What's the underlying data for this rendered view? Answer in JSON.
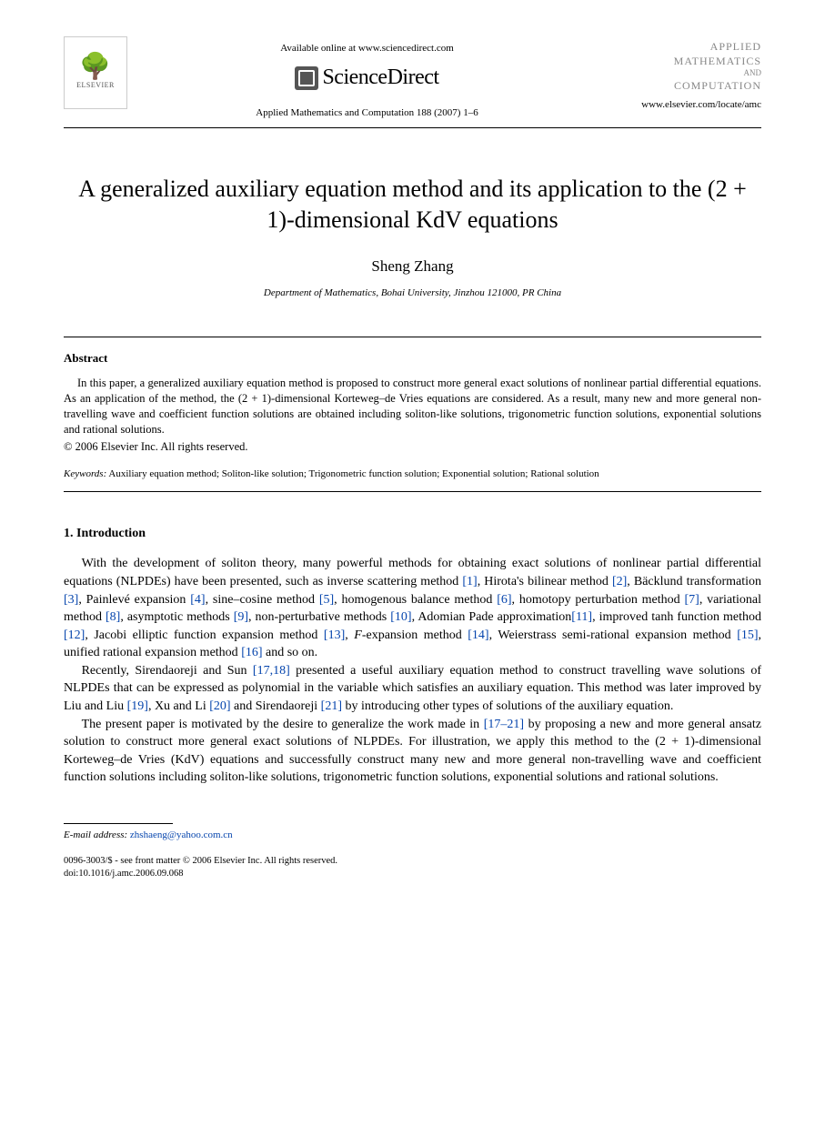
{
  "header": {
    "publisher_name": "ELSEVIER",
    "available_online": "Available online at www.sciencedirect.com",
    "sciencedirect": "ScienceDirect",
    "journal_reference": "Applied Mathematics and Computation 188 (2007) 1–6",
    "journal_logo_line1": "APPLIED",
    "journal_logo_line2": "MATHEMATICS",
    "journal_logo_and": "AND",
    "journal_logo_line3": "COMPUTATION",
    "journal_url": "www.elsevier.com/locate/amc"
  },
  "title": "A generalized auxiliary equation method and its application to the (2 + 1)-dimensional KdV equations",
  "author": "Sheng Zhang",
  "affiliation": "Department of Mathematics, Bohai University, Jinzhou 121000, PR China",
  "abstract": {
    "heading": "Abstract",
    "text": "In this paper, a generalized auxiliary equation method is proposed to construct more general exact solutions of nonlinear partial differential equations. As an application of the method, the (2 + 1)-dimensional Korteweg–de Vries equations are considered. As a result, many new and more general non-travelling wave and coefficient function solutions are obtained including soliton-like solutions, trigonometric function solutions, exponential solutions and rational solutions.",
    "copyright": "© 2006 Elsevier Inc. All rights reserved."
  },
  "keywords": {
    "label": "Keywords:",
    "text": " Auxiliary equation method; Soliton-like solution; Trigonometric function solution; Exponential solution; Rational solution"
  },
  "introduction": {
    "heading": "1. Introduction",
    "p1_a": "With the development of soliton theory, many powerful methods for obtaining exact solutions of nonlinear partial differential equations (NLPDEs) have been presented, such as inverse scattering method ",
    "c1": "[1]",
    "p1_b": ", Hirota's bilinear method ",
    "c2": "[2]",
    "p1_c": ", Bäcklund transformation ",
    "c3": "[3]",
    "p1_d": ", Painlevé expansion ",
    "c4": "[4]",
    "p1_e": ", sine–cosine method ",
    "c5": "[5]",
    "p1_f": ", homogenous balance method ",
    "c6": "[6]",
    "p1_g": ", homotopy perturbation method ",
    "c7": "[7]",
    "p1_h": ", variational method ",
    "c8": "[8]",
    "p1_i": ", asymptotic methods ",
    "c9": "[9]",
    "p1_j": ", non-perturbative methods ",
    "c10": "[10]",
    "p1_k": ", Adomian Pade approximation",
    "c11": "[11]",
    "p1_l": ", improved tanh function method ",
    "c12": "[12]",
    "p1_m": ", Jacobi elliptic function expansion method ",
    "c13": "[13]",
    "p1_n": ", ",
    "fexp": "F",
    "p1_o": "-expansion method ",
    "c14": "[14]",
    "p1_p": ", Weierstrass semi-rational expansion method ",
    "c15": "[15]",
    "p1_q": ", unified rational expansion method ",
    "c16": "[16]",
    "p1_r": " and so on.",
    "p2_a": "Recently, Sirendaoreji and Sun ",
    "c17": "[17,18]",
    "p2_b": " presented a useful auxiliary equation method to construct travelling wave solutions of NLPDEs that can be expressed as polynomial in the variable which satisfies an auxiliary equation. This method was later improved by Liu and Liu ",
    "c19": "[19]",
    "p2_c": ", Xu and Li ",
    "c20": "[20]",
    "p2_d": " and Sirendaoreji ",
    "c21": "[21]",
    "p2_e": " by introducing other types of solutions of the auxiliary equation.",
    "p3_a": "The present paper is motivated by the desire to generalize the work made in ",
    "c1721": "[17–21]",
    "p3_b": " by proposing a new and more general ansatz solution to construct more general exact solutions of NLPDEs. For illustration, we apply this method to the (2 + 1)-dimensional Korteweg–de Vries (KdV) equations and successfully construct many new and more general non-travelling wave and coefficient function solutions including soliton-like solutions, trigonometric function solutions, exponential solutions and rational solutions."
  },
  "footnote": {
    "label": "E-mail address:",
    "email": "zhshaeng@yahoo.com.cn"
  },
  "footer": {
    "line1": "0096-3003/$ - see front matter © 2006 Elsevier Inc. All rights reserved.",
    "line2": "doi:10.1016/j.amc.2006.09.068"
  },
  "colors": {
    "link": "#0645ad",
    "text": "#000000",
    "logo_muted": "#888888"
  }
}
